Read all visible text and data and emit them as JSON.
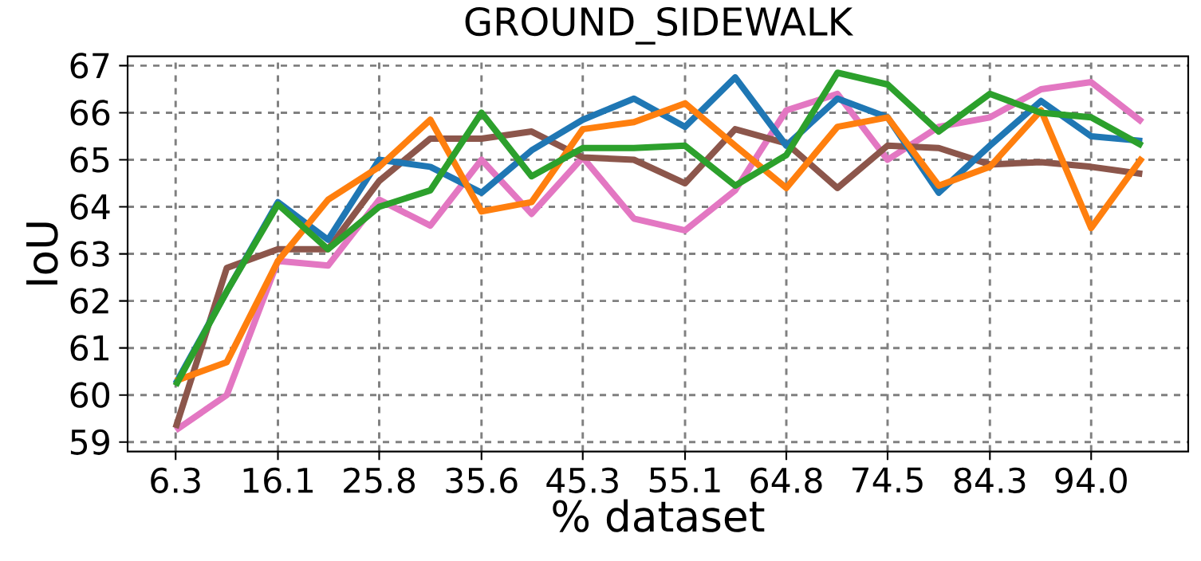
{
  "chart_data": {
    "type": "line",
    "title": "GROUND_SIDEWALK",
    "xlabel": "% dataset",
    "ylabel": "IoU",
    "x": [
      6.3,
      11.2,
      16.1,
      20.9,
      25.8,
      30.7,
      35.6,
      40.4,
      45.3,
      50.2,
      55.1,
      59.9,
      64.8,
      69.7,
      74.5,
      79.4,
      84.3,
      89.2,
      94.0,
      98.9
    ],
    "series": [
      {
        "color": "#e377c2",
        "values": [
          59.25,
          60.0,
          62.85,
          62.75,
          64.15,
          63.6,
          65.0,
          63.85,
          65.05,
          63.75,
          63.5,
          64.35,
          66.05,
          66.4,
          65.0,
          65.7,
          65.9,
          66.5,
          66.65,
          65.8
        ]
      },
      {
        "color": "#8c564b",
        "values": [
          59.3,
          62.7,
          63.1,
          63.1,
          64.55,
          65.45,
          65.45,
          65.6,
          65.05,
          65.0,
          64.5,
          65.65,
          65.35,
          64.4,
          65.3,
          65.25,
          64.9,
          64.95,
          64.85,
          64.7
        ]
      },
      {
        "color": "#1f77b4",
        "values": [
          60.24,
          62.2,
          64.1,
          63.3,
          65.0,
          64.85,
          64.3,
          65.2,
          65.85,
          66.3,
          65.7,
          66.75,
          65.3,
          66.3,
          65.9,
          64.3,
          65.3,
          66.25,
          65.5,
          65.4
        ]
      },
      {
        "color": "#ff7f0e",
        "values": [
          60.3,
          60.7,
          62.85,
          64.15,
          64.85,
          65.85,
          63.9,
          64.1,
          65.65,
          65.8,
          66.2,
          65.3,
          64.4,
          65.7,
          65.9,
          64.45,
          64.85,
          66.05,
          63.55,
          65.05
        ]
      },
      {
        "color": "#2ca02c",
        "values": [
          60.2,
          62.2,
          64.05,
          63.1,
          64.0,
          64.35,
          66.0,
          64.65,
          65.25,
          65.25,
          65.3,
          64.45,
          65.1,
          66.85,
          66.6,
          65.6,
          66.4,
          66.0,
          65.9,
          65.3
        ]
      }
    ],
    "xlim": [
      1.7,
      103.3
    ],
    "ylim": [
      58.8,
      67.2
    ],
    "xticks": [
      {
        "value": 6.3,
        "label": "6.3"
      },
      {
        "value": 16.1,
        "label": "16.1"
      },
      {
        "value": 25.8,
        "label": "25.8"
      },
      {
        "value": 35.6,
        "label": "35.6"
      },
      {
        "value": 45.3,
        "label": "45.3"
      },
      {
        "value": 55.1,
        "label": "55.1"
      },
      {
        "value": 64.8,
        "label": "64.8"
      },
      {
        "value": 74.5,
        "label": "74.5"
      },
      {
        "value": 84.3,
        "label": "84.3"
      },
      {
        "value": 94.0,
        "label": "94.0"
      }
    ],
    "yticks": [
      59,
      60,
      61,
      62,
      63,
      64,
      65,
      66,
      67
    ],
    "grid": true,
    "line_style": "solid",
    "marker": "none"
  }
}
